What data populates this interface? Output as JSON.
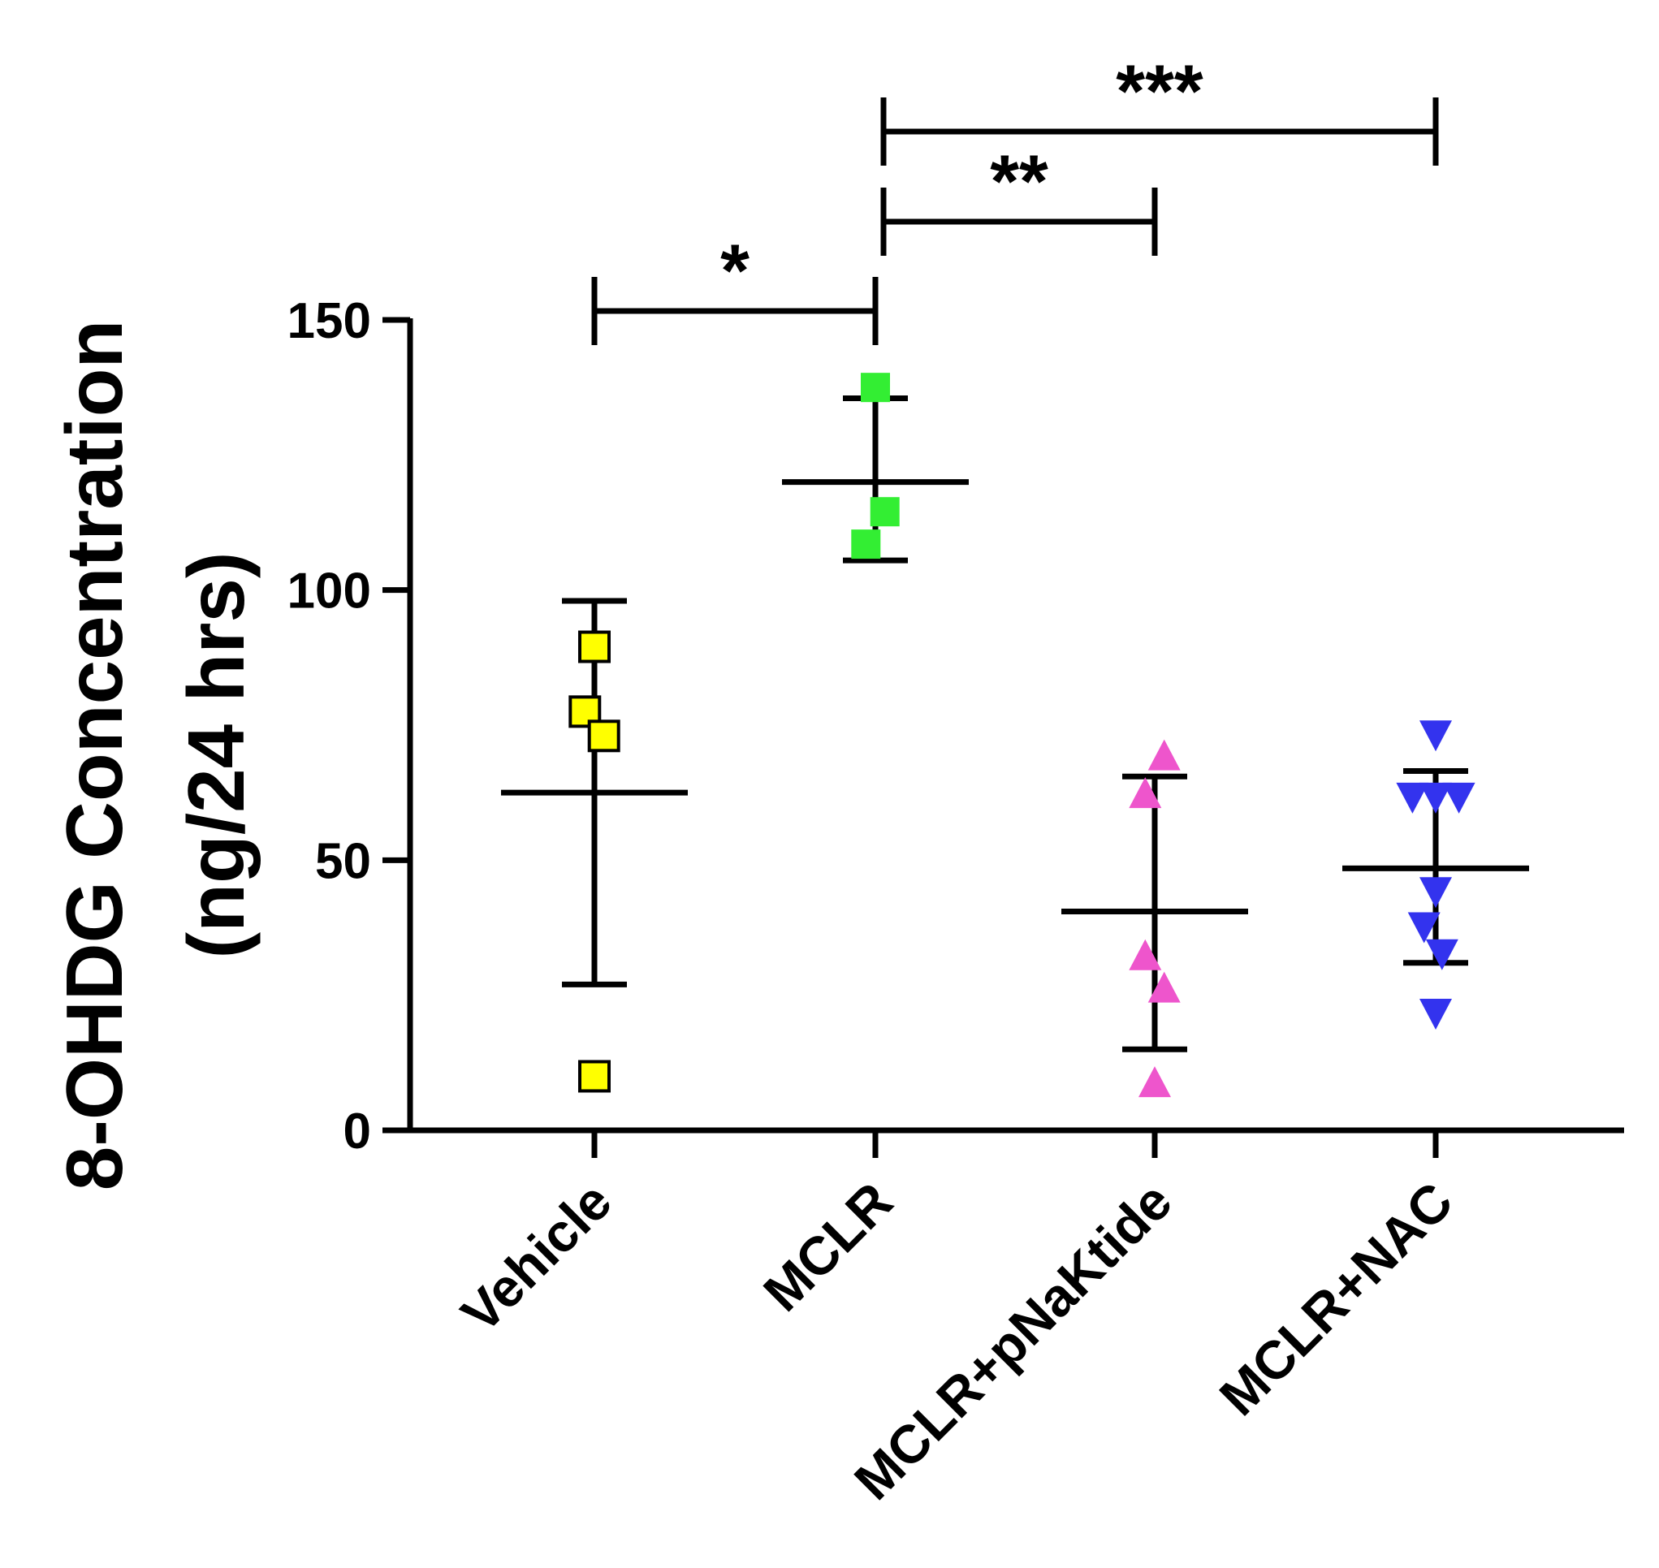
{
  "chart_data": {
    "type": "scatter",
    "title": "",
    "xlabel": "",
    "ylabel_line1": "8-OHDG Concentration",
    "ylabel_line2": "(ng/24 hrs)",
    "ylim": [
      0,
      150
    ],
    "yticks": [
      0,
      50,
      100,
      150
    ],
    "categories": [
      "Vehicle",
      "MCLR",
      "MCLR+pNaKtide",
      "MCLR+NAC"
    ],
    "series": [
      {
        "name": "Vehicle",
        "marker": "square",
        "color": "#ffff00",
        "outline": "#000000",
        "points": [
          {
            "dx": 0.0,
            "y": 89.5
          },
          {
            "dx": -0.09,
            "y": 77.5
          },
          {
            "dx": 0.09,
            "y": 73.0
          },
          {
            "dx": 0.0,
            "y": 10.0
          }
        ],
        "mean": 62.5,
        "sd_upper": 98.0,
        "sd_lower": 27.0
      },
      {
        "name": "MCLR",
        "marker": "square",
        "color": "#33ee33",
        "outline": "none",
        "points": [
          {
            "dx": 0.0,
            "y": 137.5
          },
          {
            "dx": 0.09,
            "y": 114.5
          },
          {
            "dx": -0.09,
            "y": 108.5
          }
        ],
        "mean": 120.0,
        "sd_upper": 135.5,
        "sd_lower": 105.5
      },
      {
        "name": "MCLR+pNaKtide",
        "marker": "triangle-up",
        "color": "#ee55cc",
        "outline": "none",
        "points": [
          {
            "dx": 0.09,
            "y": 69.5
          },
          {
            "dx": -0.09,
            "y": 62.5
          },
          {
            "dx": -0.09,
            "y": 32.5
          },
          {
            "dx": 0.09,
            "y": 26.5
          },
          {
            "dx": 0.0,
            "y": 9.0
          }
        ],
        "mean": 40.5,
        "sd_upper": 65.5,
        "sd_lower": 15.0
      },
      {
        "name": "MCLR+NAC",
        "marker": "triangle-down",
        "color": "#3333ee",
        "outline": "none",
        "points": [
          {
            "dx": 0.0,
            "y": 73.0
          },
          {
            "dx": -0.22,
            "y": 61.5
          },
          {
            "dx": 0.0,
            "y": 61.5
          },
          {
            "dx": 0.22,
            "y": 61.5
          },
          {
            "dx": 0.0,
            "y": 44.0
          },
          {
            "dx": -0.11,
            "y": 37.5
          },
          {
            "dx": 0.06,
            "y": 32.5
          },
          {
            "dx": 0.0,
            "y": 21.5
          }
        ],
        "mean": 48.5,
        "sd_upper": 66.5,
        "sd_lower": 31.0
      }
    ],
    "significance": [
      {
        "from": 0,
        "to": 1,
        "label": "*"
      },
      {
        "from": 1,
        "to": 2,
        "label": "**"
      },
      {
        "from": 1,
        "to": 3,
        "label": "***"
      }
    ]
  }
}
